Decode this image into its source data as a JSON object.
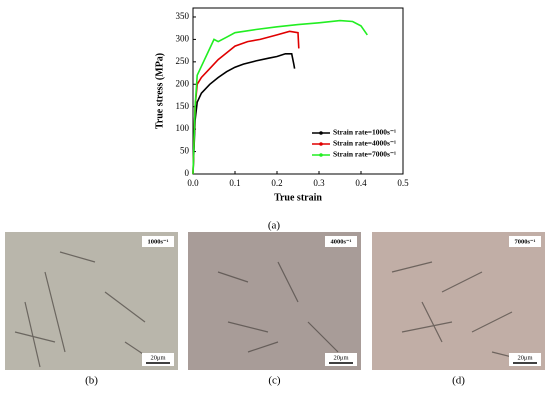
{
  "chart_data": {
    "type": "line",
    "x_label": "True strain",
    "y_label": "True stress  (MPa)",
    "xlim": [
      0,
      0.5
    ],
    "ylim": [
      0,
      370
    ],
    "xticks": [
      {
        "value": 0,
        "label": "0.0"
      },
      0.1,
      0.2,
      0.3,
      0.4,
      0.5
    ],
    "yticks": [
      0,
      50,
      100,
      150,
      200,
      250,
      300,
      350
    ],
    "legend": "lower right",
    "series": [
      {
        "name": "Strain rate=1000s⁻¹",
        "color": "#000000",
        "x": [
          0,
          0.005,
          0.01,
          0.02,
          0.04,
          0.06,
          0.08,
          0.1,
          0.12,
          0.15,
          0.18,
          0.2,
          0.22,
          0.235,
          0.24,
          0.242
        ],
        "values": [
          0,
          120,
          160,
          180,
          200,
          215,
          228,
          238,
          245,
          252,
          258,
          262,
          268,
          268,
          245,
          235
        ]
      },
      {
        "name": "Strain rate=4000s⁻¹",
        "color": "#e00000",
        "x": [
          0,
          0.005,
          0.01,
          0.02,
          0.04,
          0.06,
          0.08,
          0.1,
          0.13,
          0.16,
          0.2,
          0.23,
          0.25,
          0.252
        ],
        "values": [
          0,
          150,
          200,
          215,
          235,
          255,
          270,
          285,
          295,
          300,
          310,
          318,
          315,
          280
        ]
      },
      {
        "name": "Strain rate=7000s⁻¹",
        "color": "#22ee22",
        "x": [
          0,
          0.005,
          0.01,
          0.02,
          0.04,
          0.05,
          0.06,
          0.08,
          0.1,
          0.15,
          0.2,
          0.25,
          0.3,
          0.35,
          0.38,
          0.4,
          0.415
        ],
        "values": [
          0,
          150,
          220,
          240,
          280,
          300,
          295,
          305,
          315,
          322,
          328,
          333,
          337,
          342,
          340,
          330,
          310
        ]
      }
    ]
  },
  "chart_panel_label": "(a)",
  "micrographs": [
    {
      "label": "(b)",
      "rate": "1000s⁻¹",
      "scale_bar": "20μm"
    },
    {
      "label": "(c)",
      "rate": "4000s⁻¹",
      "scale_bar": "20μm"
    },
    {
      "label": "(d)",
      "rate": "7000s⁻¹",
      "scale_bar": "20μm"
    }
  ]
}
